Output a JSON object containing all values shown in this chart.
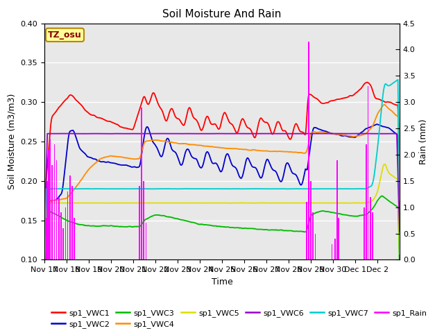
{
  "title": "Soil Moisture And Rain",
  "xlabel": "Time",
  "ylabel_left": "Soil Moisture (m3/m3)",
  "ylabel_right": "Rain (mm)",
  "xlim": [
    0,
    16
  ],
  "ylim_left": [
    0.1,
    0.4
  ],
  "ylim_right": [
    0.0,
    4.5
  ],
  "annotation_text": "TZ_osu",
  "annotation_color": "#8B0000",
  "annotation_bg": "#FFFF99",
  "annotation_border": "#B8860B",
  "x_tick_labels": [
    "Nov 17",
    "Nov 18",
    "Nov 19",
    "Nov 20",
    "Nov 21",
    "Nov 22",
    "Nov 23",
    "Nov 24",
    "Nov 25",
    "Nov 26",
    "Nov 27",
    "Nov 28",
    "Nov 29",
    "Nov 30",
    "Dec 1",
    "Dec 2"
  ],
  "colors": {
    "sp1_VWC1": "#FF0000",
    "sp1_VWC2": "#0000CC",
    "sp1_VWC3": "#00BB00",
    "sp1_VWC4": "#FF8C00",
    "sp1_VWC5": "#DDDD00",
    "sp1_VWC6": "#9900CC",
    "sp1_VWC7": "#00CCCC",
    "sp1_Rain": "#FF00FF"
  },
  "background_color": "#E8E8E8",
  "grid_color": "#FFFFFF",
  "legend_order": [
    "sp1_VWC1",
    "sp1_VWC2",
    "sp1_VWC3",
    "sp1_VWC4",
    "sp1_VWC5",
    "sp1_VWC6",
    "sp1_VWC7",
    "sp1_Rain"
  ]
}
